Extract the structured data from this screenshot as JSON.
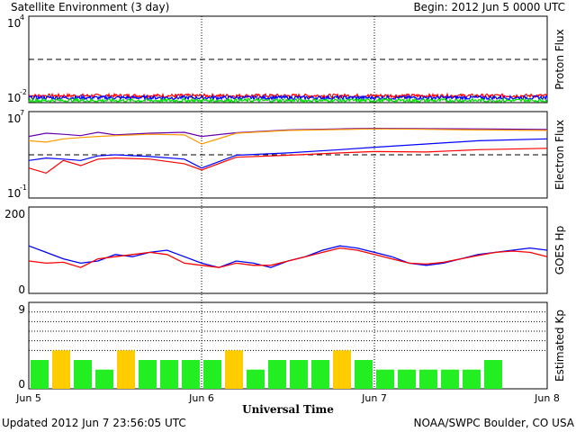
{
  "header": {
    "title": "Satellite Environment (3 day)",
    "begin": "Begin:  2012 Jun 5 0000 UTC"
  },
  "footer": {
    "updated": "Updated 2012 Jun  7 23:56:05 UTC",
    "credit": "NOAA/SWPC Boulder, CO USA",
    "xlabel": "Universal Time"
  },
  "x_ticks": [
    "Jun 5",
    "Jun 6",
    "Jun 7",
    "Jun 8"
  ],
  "panels": {
    "proton": {
      "ylabel": "Proton Flux",
      "ytick_top": "10",
      "ytick_top_exp": "4",
      "ytick_bottom": "10",
      "ytick_bottom_exp": "-2"
    },
    "electron": {
      "ylabel": "Electron Flux",
      "ytick_top": "10",
      "ytick_top_exp": "7",
      "ytick_bottom": "10",
      "ytick_bottom_exp": "-1"
    },
    "goes": {
      "ylabel": "GOES Hp",
      "ytick_top": "200",
      "ytick_bottom": "0"
    },
    "kp": {
      "ylabel": "Estimated Kp",
      "ytick_top": "9",
      "ytick_bottom": "0"
    }
  },
  "chart_data": [
    {
      "type": "line",
      "panel": "proton",
      "ylabel": "Proton Flux",
      "y_scale": "log",
      "ylim": [
        0.01,
        10000
      ],
      "x_range_days": [
        "Jun 5",
        "Jun 8"
      ],
      "threshold_dashed": 10,
      "series": [
        {
          "color": "#ff0000",
          "mean": 0.03
        },
        {
          "color": "#0000ff",
          "mean": 0.022
        },
        {
          "color": "#00dd00",
          "mean": 0.014
        }
      ]
    },
    {
      "type": "line",
      "panel": "electron",
      "ylabel": "Electron Flux",
      "y_scale": "log",
      "ylim": [
        0.1,
        10000000
      ],
      "threshold_dashed": 1000,
      "series": [
        {
          "color": "#6600aa",
          "x": [
            0,
            0.1,
            0.2,
            0.3,
            0.4,
            0.5,
            0.7,
            0.9,
            1.0,
            1.2,
            1.5,
            1.8,
            2.0,
            2.3,
            2.6,
            3.0
          ],
          "y": [
            50000,
            100000,
            80000,
            60000,
            120000,
            70000,
            100000,
            120000,
            50000,
            110000,
            200000,
            250000,
            280000,
            260000,
            250000,
            220000
          ]
        },
        {
          "color": "#ff9900",
          "x": [
            0,
            0.1,
            0.2,
            0.3,
            0.4,
            0.5,
            0.7,
            0.9,
            1.0,
            1.2,
            1.5,
            1.8,
            2.0,
            2.3,
            2.6,
            3.0
          ],
          "y": [
            20000,
            15000,
            30000,
            40000,
            50000,
            60000,
            80000,
            70000,
            10000,
            100000,
            180000,
            220000,
            250000,
            230000,
            200000,
            180000
          ]
        },
        {
          "color": "#0000ff",
          "x": [
            0,
            0.1,
            0.2,
            0.3,
            0.4,
            0.5,
            0.7,
            0.9,
            1.0,
            1.2,
            1.5,
            1.8,
            2.0,
            2.3,
            2.6,
            3.0
          ],
          "y": [
            300,
            500,
            400,
            300,
            800,
            1000,
            700,
            400,
            60,
            900,
            1500,
            3000,
            5000,
            10000,
            20000,
            30000
          ]
        },
        {
          "color": "#ff0000",
          "x": [
            0,
            0.1,
            0.2,
            0.3,
            0.4,
            0.5,
            0.7,
            0.9,
            1.0,
            1.2,
            1.5,
            1.8,
            2.0,
            2.3,
            2.6,
            3.0
          ],
          "y": [
            60,
            20,
            300,
            100,
            400,
            500,
            400,
            150,
            40,
            600,
            900,
            1500,
            2000,
            1800,
            3000,
            4000
          ]
        }
      ]
    },
    {
      "type": "line",
      "panel": "goes",
      "ylabel": "GOES Hp",
      "ylim": [
        0,
        200
      ],
      "series": [
        {
          "color": "#0000ff",
          "x": [
            0,
            0.1,
            0.2,
            0.3,
            0.4,
            0.5,
            0.6,
            0.7,
            0.8,
            0.9,
            1.0,
            1.1,
            1.2,
            1.3,
            1.4,
            1.5,
            1.6,
            1.7,
            1.8,
            1.9,
            2.0,
            2.1,
            2.2,
            2.3,
            2.4,
            2.5,
            2.6,
            2.7,
            2.8,
            2.9,
            3.0
          ],
          "y": [
            110,
            95,
            80,
            70,
            75,
            90,
            85,
            95,
            100,
            85,
            70,
            60,
            75,
            70,
            60,
            75,
            85,
            100,
            110,
            105,
            95,
            85,
            70,
            65,
            70,
            80,
            90,
            95,
            100,
            105,
            100
          ]
        },
        {
          "color": "#ff0000",
          "x": [
            0,
            0.1,
            0.2,
            0.3,
            0.4,
            0.5,
            0.6,
            0.7,
            0.8,
            0.9,
            1.0,
            1.1,
            1.2,
            1.3,
            1.4,
            1.5,
            1.6,
            1.7,
            1.8,
            1.9,
            2.0,
            2.1,
            2.2,
            2.3,
            2.4,
            2.5,
            2.6,
            2.7,
            2.8,
            2.9,
            3.0
          ],
          "y": [
            75,
            70,
            72,
            60,
            80,
            85,
            90,
            95,
            90,
            70,
            65,
            60,
            70,
            65,
            65,
            75,
            85,
            95,
            105,
            100,
            90,
            80,
            70,
            68,
            72,
            80,
            88,
            95,
            98,
            95,
            85
          ]
        }
      ]
    },
    {
      "type": "bar",
      "panel": "kp",
      "ylabel": "Estimated Kp",
      "ylim": [
        0,
        9
      ],
      "dotted_levels": [
        4,
        5,
        6,
        7,
        8
      ],
      "colors": {
        "normal": "#22ee22",
        "active": "#ffcc00"
      },
      "values": [
        3,
        4,
        3,
        2,
        4,
        3,
        3,
        3,
        3,
        4,
        2,
        3,
        3,
        3,
        4,
        3,
        2,
        2,
        2,
        2,
        2,
        3,
        0,
        0
      ],
      "active_threshold": 4
    }
  ]
}
